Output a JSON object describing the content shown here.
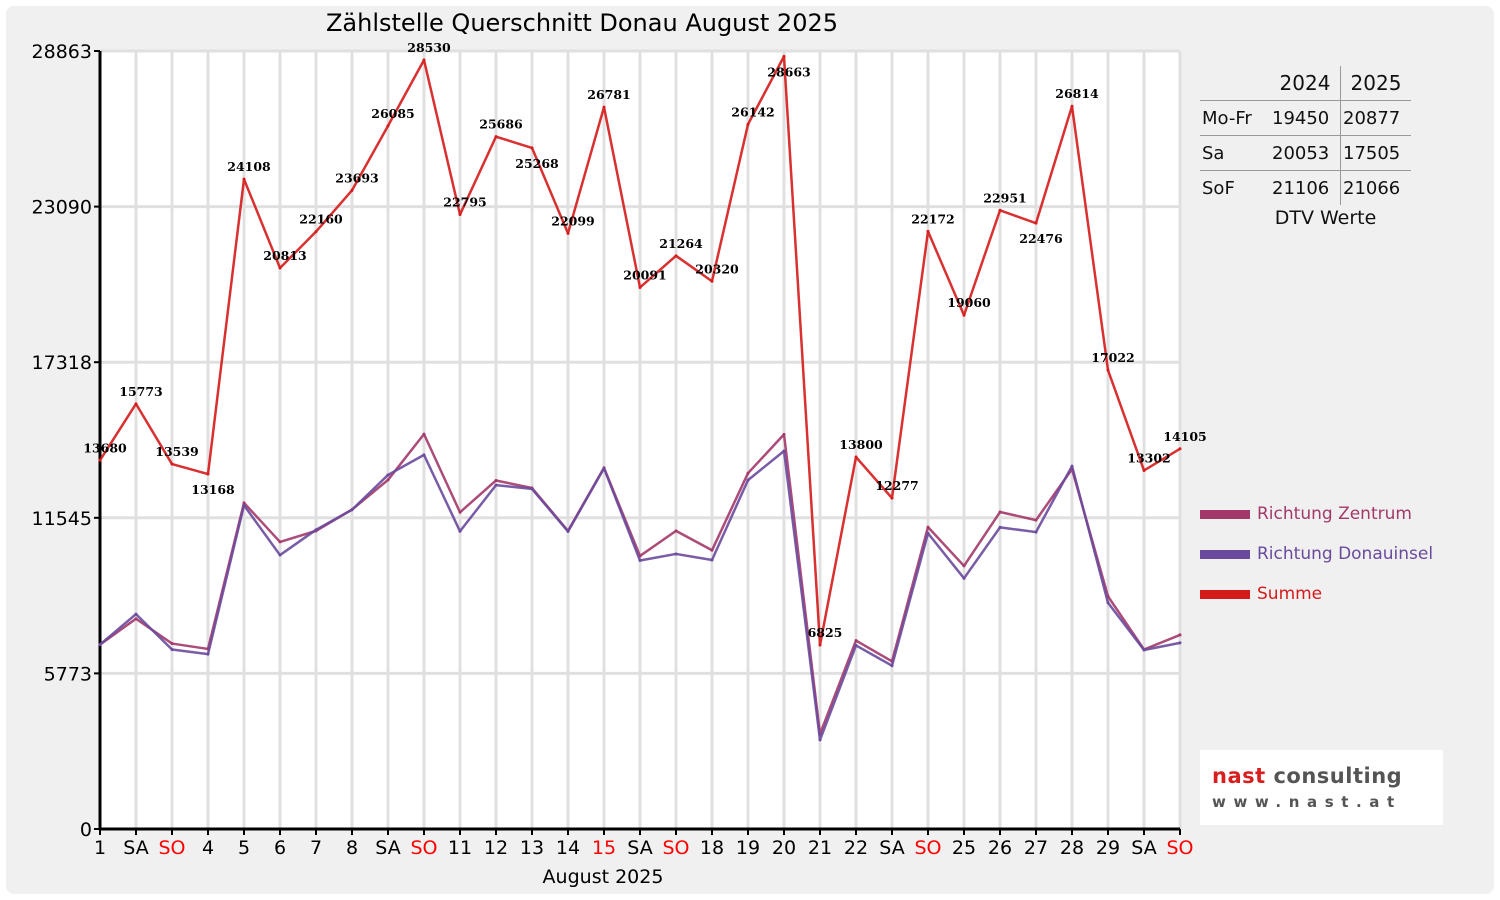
{
  "chart_data": {
    "type": "line",
    "title": "Zählstelle Querschnitt Donau August 2025",
    "xlabel": "August 2025",
    "ylabel": "",
    "ylim": [
      0,
      28863
    ],
    "yticks": [
      0,
      5773,
      11545,
      17318,
      23090,
      28863
    ],
    "grid": true,
    "legend_placement": "right",
    "categories": [
      "1",
      "SA",
      "SO",
      "4",
      "5",
      "6",
      "7",
      "8",
      "SA",
      "SO",
      "11",
      "12",
      "13",
      "14",
      "15",
      "SA",
      "SO",
      "18",
      "19",
      "20",
      "21",
      "22",
      "SA",
      "SO",
      "25",
      "26",
      "27",
      "28",
      "29",
      "SA",
      "SO"
    ],
    "red_categories": [
      2,
      9,
      14,
      16,
      23,
      30
    ],
    "series": [
      {
        "name": "Richtung Zentrum",
        "color": "#a3386a",
        "values": [
          6840,
          7800,
          6880,
          6680,
          12100,
          10650,
          11060,
          11850,
          12950,
          14650,
          11750,
          12930,
          12650,
          11060,
          13400,
          10130,
          11060,
          10340,
          13200,
          14640,
          3520,
          6990,
          6220,
          11200,
          9760,
          11760,
          11460,
          13350,
          8630,
          6660,
          7200
        ]
      },
      {
        "name": "Richtung Donauinsel",
        "color": "#6a4a9c",
        "values": [
          6840,
          7973,
          6659,
          6488,
          12008,
          10163,
          11100,
          11843,
          13135,
          13880,
          11045,
          12756,
          12618,
          11039,
          13381,
          9961,
          10204,
          9980,
          12942,
          14023,
          3305,
          6810,
          6057,
          10972,
          9300,
          11191,
          11016,
          13464,
          8392,
          6642,
          6905
        ]
      },
      {
        "name": "Summe",
        "color": "#d51a1a",
        "labeled": true,
        "values": [
          13680,
          15773,
          13539,
          13168,
          24108,
          20813,
          22160,
          23693,
          26085,
          28530,
          22795,
          25686,
          25268,
          22099,
          26781,
          20091,
          21264,
          20320,
          26142,
          28663,
          6825,
          13800,
          12277,
          22172,
          19060,
          22951,
          22476,
          26814,
          17022,
          13302,
          14105
        ]
      }
    ]
  },
  "dtv": {
    "headers": [
      "2024",
      "2025"
    ],
    "rows": [
      {
        "label": "Mo-Fr",
        "v2024": "19450",
        "v2025": "20877"
      },
      {
        "label": "Sa",
        "v2024": "20053",
        "v2025": "17505"
      },
      {
        "label": "SoF",
        "v2024": "21106",
        "v2025": "21066"
      }
    ],
    "caption": "DTV Werte"
  },
  "logo": {
    "line1a": "nast",
    "line1b": "consulting",
    "line2": "www.nast.at"
  },
  "colors": {
    "background": "#f0f0f0",
    "plot": "#ffffff",
    "grid": "#e0e0e0",
    "holiday_label": "#ff0000"
  }
}
